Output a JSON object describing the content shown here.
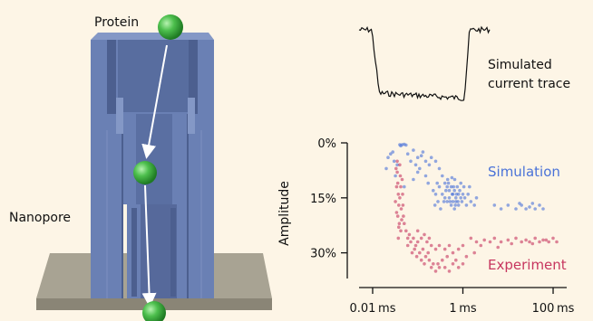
{
  "labels": {
    "protein": "Protein",
    "nanopore": "Nanopore",
    "trace_line1": "Simulated",
    "trace_line2": "current trace"
  },
  "colors": {
    "background": "#fdf5e6",
    "pore": "#6a80b4",
    "pore_dark": "#4c5f8f",
    "pore_light": "#8498c6",
    "membrane": "#a8a393",
    "protein": "#4dbf4d",
    "simulation": "#4a72d8",
    "experiment": "#c7365f"
  },
  "icons": [
    "protein-ball",
    "arrow"
  ],
  "chart_data": {
    "type": "scatter",
    "xlabel": "",
    "ylabel": "Amplitude",
    "x_scale": "log",
    "x_unit": "ms",
    "xlim": [
      0.005,
      200
    ],
    "ylim": [
      0,
      37
    ],
    "y_inverted": true,
    "x_ticks": [
      {
        "value": 0.01,
        "num": "0.01",
        "unit": "ms"
      },
      {
        "value": 1,
        "num": "1",
        "unit": "ms"
      },
      {
        "value": 100,
        "num": "100",
        "unit": "ms"
      }
    ],
    "y_ticks": [
      {
        "value": 0,
        "label": "0%"
      },
      {
        "value": 15,
        "label": "15%"
      },
      {
        "value": 30,
        "label": "30%"
      }
    ],
    "series": [
      {
        "name": "Simulation",
        "color": "#4a72d8",
        "points": [
          [
            0.04,
            0.5
          ],
          [
            0.045,
            0.5
          ],
          [
            0.05,
            0.4
          ],
          [
            0.055,
            0.6
          ],
          [
            0.042,
            0.8
          ],
          [
            0.025,
            3
          ],
          [
            0.03,
            5
          ],
          [
            0.022,
            4
          ],
          [
            0.035,
            6
          ],
          [
            0.028,
            2.5
          ],
          [
            0.02,
            7
          ],
          [
            0.032,
            9
          ],
          [
            0.06,
            3
          ],
          [
            0.08,
            2
          ],
          [
            0.1,
            4
          ],
          [
            0.07,
            5
          ],
          [
            0.12,
            3.5
          ],
          [
            0.09,
            6
          ],
          [
            0.15,
            5
          ],
          [
            0.11,
            7
          ],
          [
            0.2,
            4
          ],
          [
            0.18,
            6
          ],
          [
            0.25,
            5
          ],
          [
            0.13,
            2.5
          ],
          [
            0.3,
            7
          ],
          [
            0.35,
            9
          ],
          [
            0.4,
            11
          ],
          [
            0.45,
            12
          ],
          [
            0.5,
            13
          ],
          [
            0.55,
            12
          ],
          [
            0.6,
            14
          ],
          [
            0.65,
            13
          ],
          [
            0.7,
            15
          ],
          [
            0.75,
            12
          ],
          [
            0.8,
            14
          ],
          [
            0.35,
            14
          ],
          [
            0.4,
            15
          ],
          [
            0.45,
            16
          ],
          [
            0.5,
            15
          ],
          [
            0.55,
            17
          ],
          [
            0.6,
            16
          ],
          [
            0.65,
            18
          ],
          [
            0.7,
            16
          ],
          [
            0.8,
            17
          ],
          [
            0.9,
            15
          ],
          [
            1.0,
            14
          ],
          [
            0.3,
            12
          ],
          [
            0.38,
            16
          ],
          [
            0.42,
            13
          ],
          [
            0.48,
            11
          ],
          [
            0.52,
            16
          ],
          [
            0.58,
            14
          ],
          [
            0.62,
            12
          ],
          [
            0.68,
            17
          ],
          [
            0.72,
            14
          ],
          [
            0.78,
            16
          ],
          [
            0.85,
            13
          ],
          [
            0.95,
            16
          ],
          [
            1.05,
            12
          ],
          [
            1.1,
            15
          ],
          [
            1.2,
            17
          ],
          [
            0.9,
            11
          ],
          [
            0.66,
            10
          ],
          [
            0.57,
            9.5
          ],
          [
            0.46,
            10
          ],
          [
            0.25,
            14
          ],
          [
            0.28,
            16
          ],
          [
            0.22,
            13
          ],
          [
            0.32,
            18
          ],
          [
            0.27,
            11
          ],
          [
            0.24,
            17
          ],
          [
            1.3,
            14
          ],
          [
            1.5,
            16
          ],
          [
            1.8,
            17
          ],
          [
            1.4,
            12
          ],
          [
            2.0,
            15
          ],
          [
            5,
            17
          ],
          [
            7,
            18
          ],
          [
            10,
            17
          ],
          [
            15,
            18
          ],
          [
            20,
            17
          ],
          [
            25,
            18
          ],
          [
            30,
            17.5
          ],
          [
            40,
            18
          ],
          [
            50,
            17
          ],
          [
            60,
            18
          ],
          [
            35,
            16.5
          ],
          [
            18,
            16.5
          ],
          [
            0.15,
            9
          ],
          [
            0.17,
            11
          ],
          [
            0.1,
            8
          ],
          [
            0.08,
            10
          ],
          [
            0.05,
            12
          ]
        ]
      },
      {
        "name": "Experiment",
        "color": "#c7365f",
        "points": [
          [
            0.035,
            5
          ],
          [
            0.035,
            8
          ],
          [
            0.036,
            11
          ],
          [
            0.037,
            14
          ],
          [
            0.038,
            17
          ],
          [
            0.036,
            20
          ],
          [
            0.038,
            23
          ],
          [
            0.037,
            26
          ],
          [
            0.04,
            6
          ],
          [
            0.041,
            9
          ],
          [
            0.042,
            12
          ],
          [
            0.04,
            15
          ],
          [
            0.043,
            18
          ],
          [
            0.044,
            21
          ],
          [
            0.042,
            24
          ],
          [
            0.045,
            10
          ],
          [
            0.033,
            7
          ],
          [
            0.034,
            12
          ],
          [
            0.032,
            16
          ],
          [
            0.034,
            19
          ],
          [
            0.046,
            14
          ],
          [
            0.047,
            17
          ],
          [
            0.048,
            20
          ],
          [
            0.039,
            22
          ],
          [
            0.05,
            22
          ],
          [
            0.055,
            24
          ],
          [
            0.06,
            26
          ],
          [
            0.065,
            25
          ],
          [
            0.07,
            27
          ],
          [
            0.08,
            26
          ],
          [
            0.09,
            28
          ],
          [
            0.1,
            27
          ],
          [
            0.06,
            28
          ],
          [
            0.075,
            30
          ],
          [
            0.085,
            29
          ],
          [
            0.095,
            31
          ],
          [
            0.11,
            30
          ],
          [
            0.13,
            29
          ],
          [
            0.15,
            31
          ],
          [
            0.17,
            30
          ],
          [
            0.12,
            32
          ],
          [
            0.14,
            33
          ],
          [
            0.18,
            32
          ],
          [
            0.2,
            34
          ],
          [
            0.22,
            33
          ],
          [
            0.25,
            35
          ],
          [
            0.28,
            33
          ],
          [
            0.3,
            34
          ],
          [
            0.35,
            32
          ],
          [
            0.4,
            34
          ],
          [
            0.5,
            35
          ],
          [
            0.6,
            33
          ],
          [
            0.8,
            34
          ],
          [
            1.0,
            33
          ],
          [
            0.45,
            31
          ],
          [
            0.7,
            32
          ],
          [
            0.1,
            24
          ],
          [
            0.12,
            26
          ],
          [
            0.14,
            25
          ],
          [
            0.16,
            27
          ],
          [
            0.2,
            28
          ],
          [
            0.25,
            29
          ],
          [
            0.3,
            28
          ],
          [
            0.18,
            26
          ],
          [
            0.4,
            29
          ],
          [
            0.5,
            28
          ],
          [
            0.6,
            30
          ],
          [
            0.8,
            29
          ],
          [
            1.0,
            28
          ],
          [
            1.5,
            26
          ],
          [
            2.0,
            27
          ],
          [
            3,
            26.5
          ],
          [
            4,
            27
          ],
          [
            5,
            26
          ],
          [
            7,
            27
          ],
          [
            10,
            26.5
          ],
          [
            12,
            27.5
          ],
          [
            15,
            26
          ],
          [
            20,
            27
          ],
          [
            25,
            26.5
          ],
          [
            30,
            27
          ],
          [
            40,
            26
          ],
          [
            50,
            27
          ],
          [
            60,
            26.5
          ],
          [
            80,
            27
          ],
          [
            100,
            26
          ],
          [
            120,
            27
          ],
          [
            35,
            27.5
          ],
          [
            70,
            26.5
          ],
          [
            2.5,
            28
          ],
          [
            6,
            28.5
          ],
          [
            1.2,
            31
          ],
          [
            1.8,
            30
          ]
        ]
      }
    ],
    "legend": {
      "simulation": "Simulation",
      "experiment": "Experiment",
      "placement": "right"
    }
  }
}
